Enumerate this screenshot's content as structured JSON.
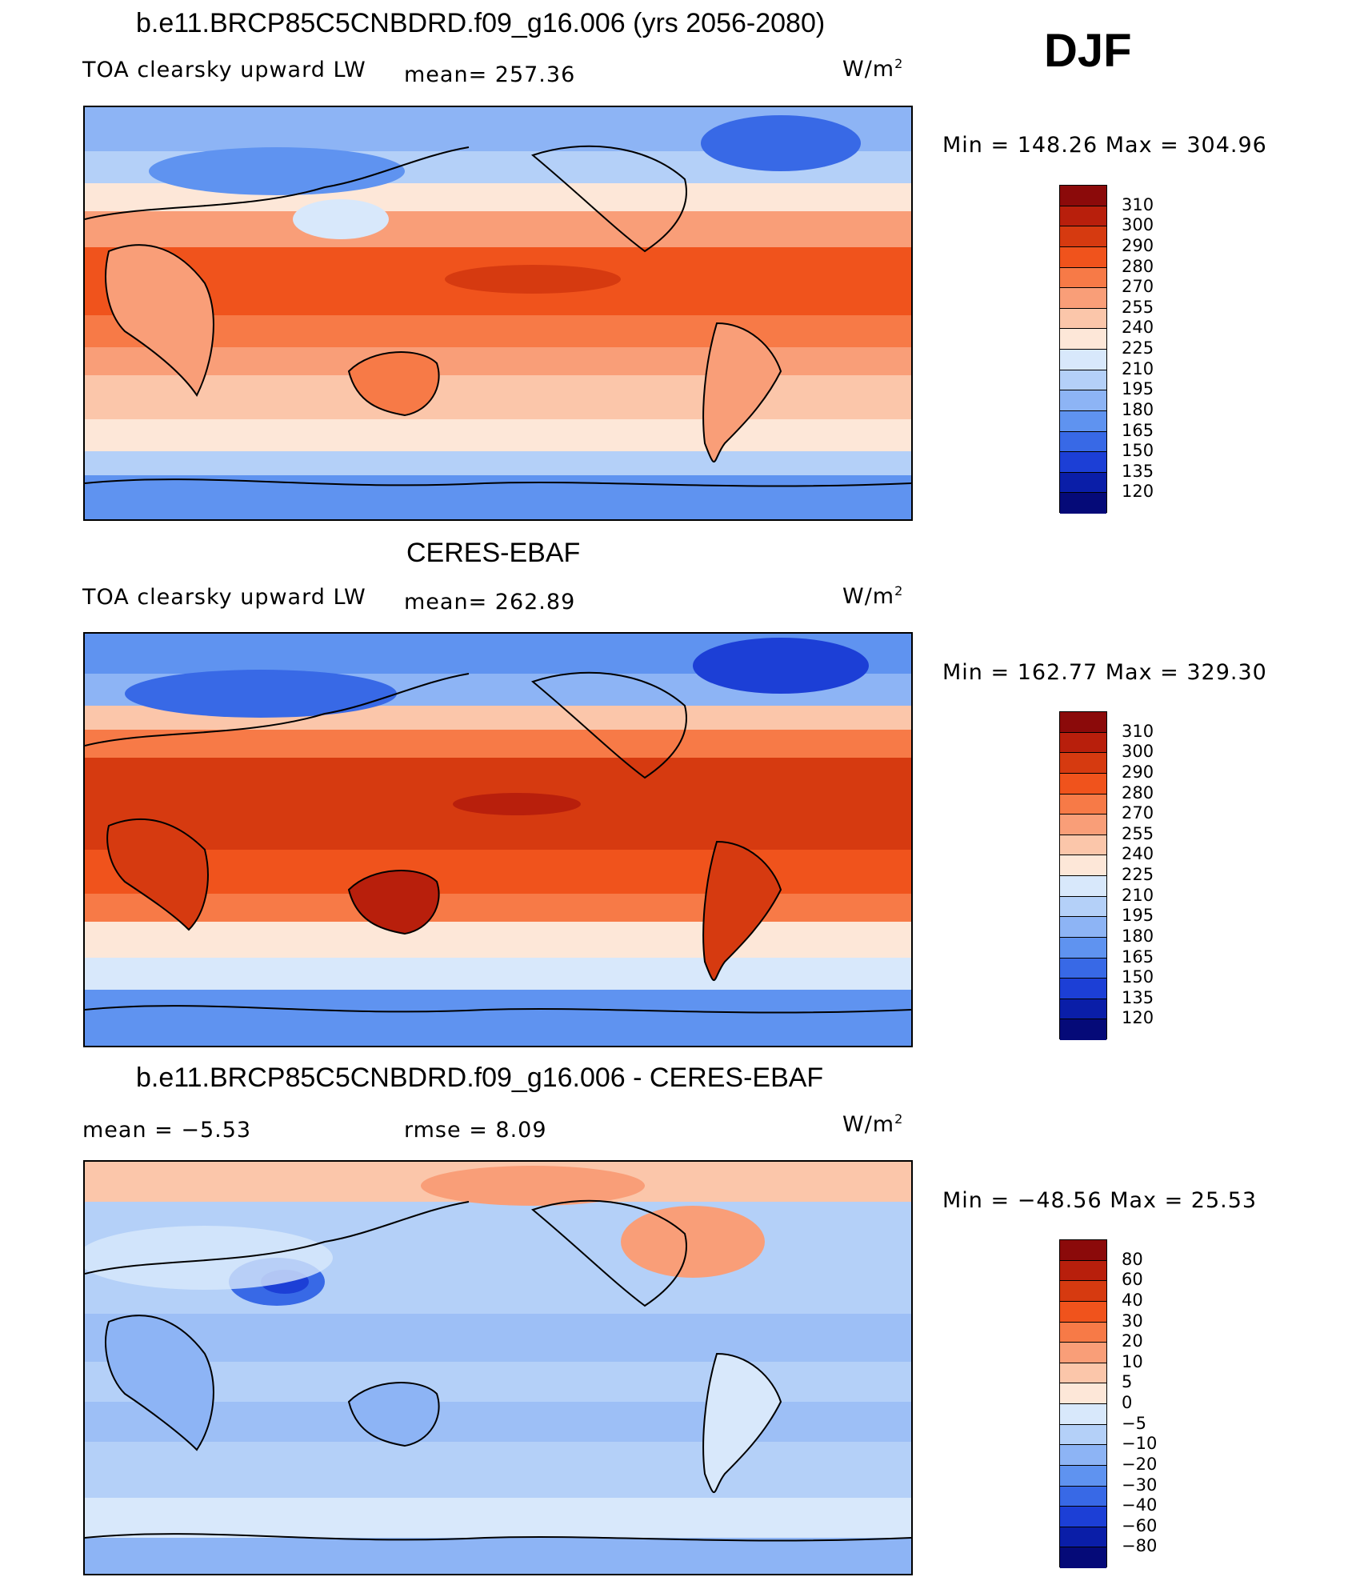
{
  "season": "DJF",
  "panels": [
    {
      "id": "model",
      "title": "b.e11.BRCP85C5CNBDRD.f09_g16.006 (yrs 2056-2080)",
      "left_text": "TOA clearsky upward LW",
      "mid_text": "mean=  257.36",
      "units": "W/m",
      "units_sup": "2",
      "minmax": "Min  =  148.26  Max  =  304.96",
      "colorbar_levels": [
        "310",
        "300",
        "290",
        "280",
        "270",
        "255",
        "240",
        "225",
        "210",
        "195",
        "180",
        "165",
        "150",
        "135",
        "120"
      ],
      "colorbar_colors": [
        "#8b0a0a",
        "#b81f0c",
        "#d63a10",
        "#f0531c",
        "#f77a47",
        "#f99e78",
        "#fbc6aa",
        "#fde7d8",
        "#d8e8fb",
        "#b4d0f8",
        "#8db4f5",
        "#5f93f0",
        "#3869e6",
        "#1c3fd6",
        "#0a1ea8",
        "#050a78"
      ]
    },
    {
      "id": "obs",
      "title": "CERES-EBAF",
      "left_text": "TOA clearsky upward LW",
      "mid_text": "mean=  262.89",
      "units": "W/m",
      "units_sup": "2",
      "minmax": "Min  =  162.77  Max  =  329.30",
      "colorbar_levels": [
        "310",
        "300",
        "290",
        "280",
        "270",
        "255",
        "240",
        "225",
        "210",
        "195",
        "180",
        "165",
        "150",
        "135",
        "120"
      ],
      "colorbar_colors": [
        "#8b0a0a",
        "#b81f0c",
        "#d63a10",
        "#f0531c",
        "#f77a47",
        "#f99e78",
        "#fbc6aa",
        "#fde7d8",
        "#d8e8fb",
        "#b4d0f8",
        "#8db4f5",
        "#5f93f0",
        "#3869e6",
        "#1c3fd6",
        "#0a1ea8",
        "#050a78"
      ]
    },
    {
      "id": "diff",
      "title": "b.e11.BRCP85C5CNBDRD.f09_g16.006 - CERES-EBAF",
      "left_text": "mean  =     −5.53",
      "mid_text": "rmse  =     8.09",
      "units": "W/m",
      "units_sup": "2",
      "minmax": "Min  =  −48.56  Max  =     25.53",
      "colorbar_levels": [
        "80",
        "60",
        "40",
        "30",
        "20",
        "10",
        "5",
        "0",
        "−5",
        "−10",
        "−20",
        "−30",
        "−40",
        "−60",
        "−80"
      ],
      "colorbar_colors": [
        "#8b0a0a",
        "#b81f0c",
        "#d63a10",
        "#f0531c",
        "#f77a47",
        "#f99e78",
        "#fbc6aa",
        "#fde7d8",
        "#d8e8fb",
        "#b4d0f8",
        "#8db4f5",
        "#5f93f0",
        "#3869e6",
        "#1c3fd6",
        "#0a1ea8",
        "#050a78"
      ]
    }
  ]
}
